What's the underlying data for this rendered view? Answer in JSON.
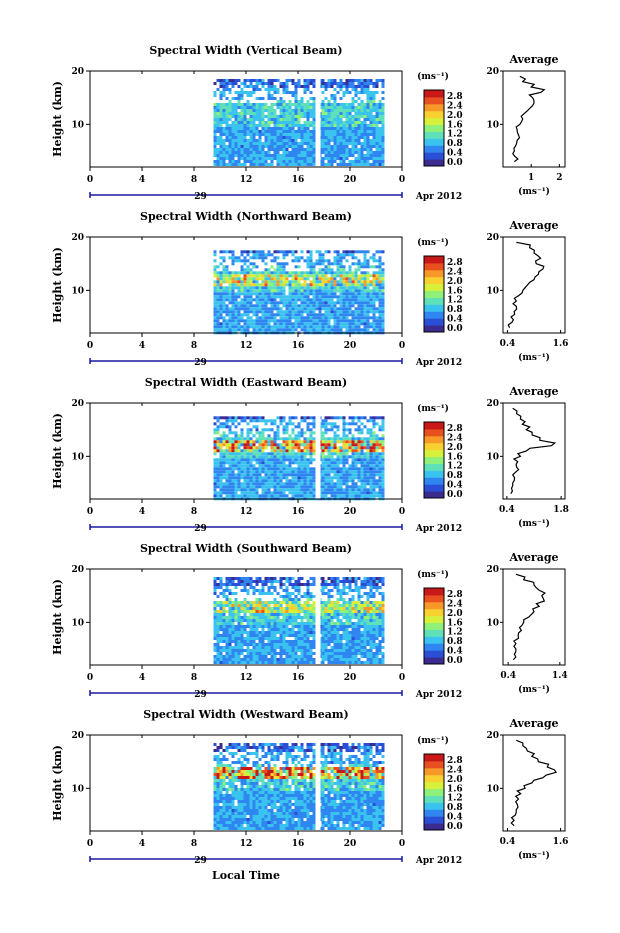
{
  "figure": {
    "footer_xlabel": "Local Time",
    "date_label": "Apr 2012",
    "day_label": "29",
    "unit_label": "(ms⁻¹)",
    "avg_title": "Average",
    "y_label": "Height (km)",
    "colorbar_ticks": [
      "2.8",
      "2.4",
      "2.0",
      "1.6",
      "1.2",
      "0.8",
      "0.4",
      "0.0"
    ],
    "colorscale": [
      "#3b2b8f",
      "#2a4fd6",
      "#2f86f0",
      "#3bc3f0",
      "#5fe0b8",
      "#8ff07a",
      "#d7f03c",
      "#f8d030",
      "#f89828",
      "#e85020",
      "#c81818"
    ]
  },
  "chart_data": [
    {
      "type": "heatmap",
      "title": "Spectral Width (Vertical Beam)",
      "x_ticks": [
        "0",
        "4",
        "8",
        "12",
        "16",
        "20",
        "0"
      ],
      "y_ticks": [
        "20",
        "10"
      ],
      "xlim": [
        0,
        24
      ],
      "ylim": [
        2,
        20
      ],
      "data_start_hour": 9.5,
      "data_end_hour": 22.5,
      "gap_hour": 17.5,
      "top_km": 18.5,
      "hot_layer_km": null,
      "hot_level": 0.35,
      "profile": {
        "x_ticks": [
          "1",
          "2"
        ],
        "xlim": [
          0,
          2.2
        ],
        "heights": [
          3,
          4,
          5,
          6,
          7,
          8,
          9,
          10,
          11,
          12,
          13,
          14,
          15,
          16,
          17,
          18,
          19
        ],
        "values": [
          0.4,
          0.42,
          0.4,
          0.45,
          0.5,
          0.55,
          0.5,
          0.6,
          0.7,
          0.75,
          0.95,
          1.1,
          1.05,
          1.35,
          1.0,
          0.7,
          0.6
        ]
      }
    },
    {
      "type": "heatmap",
      "title": "Spectral Width (Northward Beam)",
      "x_ticks": [
        "0",
        "4",
        "8",
        "12",
        "16",
        "20",
        "0"
      ],
      "y_ticks": [
        "20",
        "10"
      ],
      "xlim": [
        0,
        24
      ],
      "ylim": [
        2,
        20
      ],
      "data_start_hour": 9.5,
      "data_end_hour": 22.5,
      "gap_hour": null,
      "top_km": 17.5,
      "hot_layer_km": 12,
      "hot_level": 0.55,
      "profile": {
        "x_ticks": [
          "0.4",
          "1.6"
        ],
        "xlim": [
          0.3,
          1.7
        ],
        "heights": [
          3,
          4,
          5,
          6,
          7,
          8,
          9,
          10,
          11,
          12,
          13,
          14,
          15,
          16,
          17,
          18,
          19
        ],
        "values": [
          0.45,
          0.5,
          0.48,
          0.55,
          0.6,
          0.6,
          0.65,
          0.75,
          0.85,
          1.0,
          1.1,
          1.2,
          1.05,
          1.15,
          1.0,
          0.9,
          0.6
        ]
      }
    },
    {
      "type": "heatmap",
      "title": "Spectral Width (Eastward Beam)",
      "x_ticks": [
        "0",
        "4",
        "8",
        "12",
        "16",
        "20",
        "0"
      ],
      "y_ticks": [
        "20",
        "10"
      ],
      "xlim": [
        0,
        24
      ],
      "ylim": [
        2,
        20
      ],
      "data_start_hour": 9.5,
      "data_end_hour": 22.5,
      "gap_hour": 17.5,
      "top_km": 17.5,
      "hot_layer_km": 12,
      "hot_level": 0.8,
      "profile": {
        "x_ticks": [
          "0.4",
          "1.8"
        ],
        "xlim": [
          0.3,
          1.9
        ],
        "heights": [
          3,
          4,
          5,
          6,
          7,
          8,
          9,
          10,
          11,
          12,
          13,
          14,
          15,
          16,
          17,
          18,
          19
        ],
        "values": [
          0.5,
          0.52,
          0.55,
          0.6,
          0.62,
          0.65,
          0.68,
          0.75,
          0.9,
          1.55,
          1.25,
          1.05,
          0.9,
          0.8,
          0.75,
          0.65,
          0.55
        ]
      }
    },
    {
      "type": "heatmap",
      "title": "Spectral Width (Southward Beam)",
      "x_ticks": [
        "0",
        "4",
        "8",
        "12",
        "16",
        "20",
        "0"
      ],
      "y_ticks": [
        "20",
        "10"
      ],
      "xlim": [
        0,
        24
      ],
      "ylim": [
        2,
        20
      ],
      "data_start_hour": 9.5,
      "data_end_hour": 22.5,
      "gap_hour": 17.5,
      "top_km": 18.5,
      "hot_layer_km": 13,
      "hot_level": 0.5,
      "profile": {
        "x_ticks": [
          "0.4",
          "1.4"
        ],
        "xlim": [
          0.3,
          1.5
        ],
        "heights": [
          3,
          4,
          5,
          6,
          7,
          8,
          9,
          10,
          11,
          12,
          13,
          14,
          15,
          16,
          17,
          18,
          19
        ],
        "values": [
          0.5,
          0.52,
          0.55,
          0.55,
          0.6,
          0.6,
          0.62,
          0.7,
          0.8,
          0.9,
          1.0,
          1.1,
          1.05,
          1.0,
          0.9,
          0.7,
          0.55
        ]
      }
    },
    {
      "type": "heatmap",
      "title": "Spectral Width (Westward Beam)",
      "x_ticks": [
        "0",
        "4",
        "8",
        "12",
        "16",
        "20",
        "0"
      ],
      "y_ticks": [
        "20",
        "10"
      ],
      "xlim": [
        0,
        24
      ],
      "ylim": [
        2,
        20
      ],
      "data_start_hour": 9.5,
      "data_end_hour": 22.5,
      "gap_hour": 17.5,
      "top_km": 18.5,
      "hot_layer_km": 13,
      "hot_level": 0.75,
      "profile": {
        "x_ticks": [
          "0.4",
          "1.6"
        ],
        "xlim": [
          0.3,
          1.7
        ],
        "heights": [
          3,
          4,
          5,
          6,
          7,
          8,
          9,
          10,
          11,
          12,
          13,
          14,
          15,
          16,
          17,
          18,
          19
        ],
        "values": [
          0.55,
          0.55,
          0.58,
          0.6,
          0.62,
          0.65,
          0.7,
          0.8,
          0.95,
          1.2,
          1.5,
          1.3,
          1.1,
          0.95,
          0.85,
          0.75,
          0.6
        ]
      }
    }
  ]
}
